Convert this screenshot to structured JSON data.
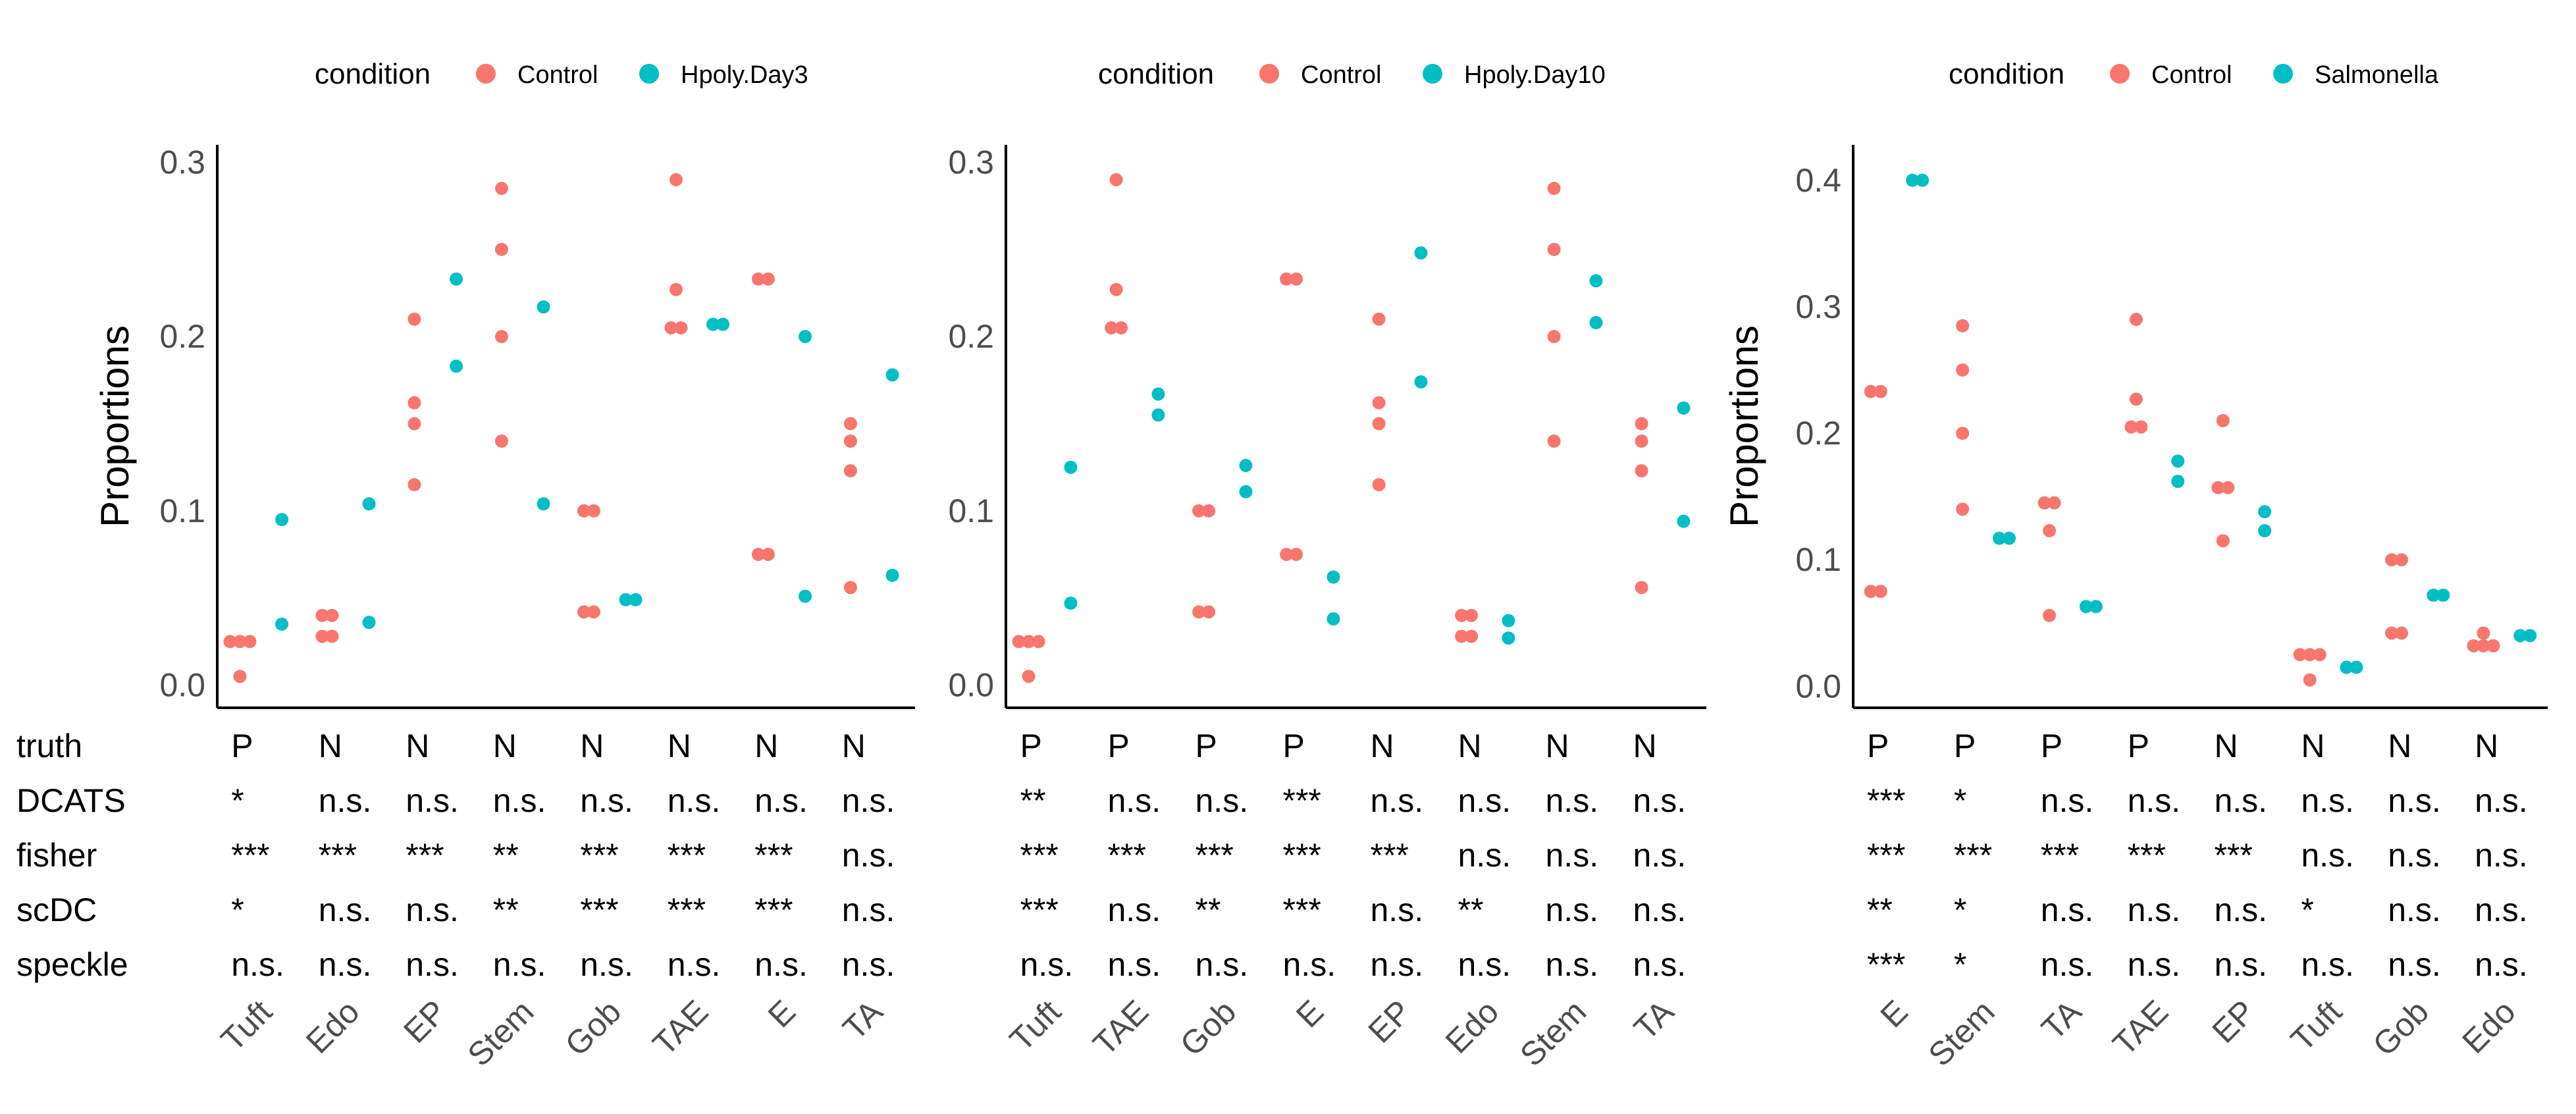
{
  "colors": {
    "control": "#F8766D",
    "treated": "#00BFC4"
  },
  "chart_data": [
    {
      "type": "scatter",
      "legend": {
        "title": "condition",
        "labels": [
          "Control",
          "Hpoly.Day3"
        ],
        "placement": "top"
      },
      "ylabel": "Proportions",
      "xlabel": "",
      "ylim": [
        -0.013,
        0.31
      ],
      "yticks": [
        "0.0",
        "0.1",
        "0.2",
        "0.3"
      ],
      "categories": [
        "Tuft",
        "Edo",
        "EP",
        "Stem",
        "Gob",
        "TAE",
        "E",
        "TA"
      ],
      "row_labels": [
        "truth",
        "DCATS",
        "fisher",
        "scDC",
        "speckle"
      ],
      "rows": [
        [
          "P",
          "N",
          "N",
          "N",
          "N",
          "N",
          "N",
          "N"
        ],
        [
          "*",
          "n.s.",
          "n.s.",
          "n.s.",
          "n.s.",
          "n.s.",
          "n.s.",
          "n.s."
        ],
        [
          "***",
          "***",
          "***",
          "**",
          "***",
          "***",
          "***",
          "n.s."
        ],
        [
          "*",
          "n.s.",
          "n.s.",
          "**",
          "***",
          "***",
          "***",
          "n.s."
        ],
        [
          "n.s.",
          "n.s.",
          "n.s.",
          "n.s.",
          "n.s.",
          "n.s.",
          "n.s.",
          "n.s."
        ]
      ],
      "series": [
        {
          "name": "Control",
          "values": [
            [
              0.025,
              0.025,
              0.025,
              0.005
            ],
            [
              0.04,
              0.04,
              0.028,
              0.028
            ],
            [
              0.21,
              0.162,
              0.15,
              0.115
            ],
            [
              0.285,
              0.25,
              0.2,
              0.14
            ],
            [
              0.1,
              0.1,
              0.042,
              0.042
            ],
            [
              0.29,
              0.227,
              0.205,
              0.205
            ],
            [
              0.233,
              0.233,
              0.075,
              0.075
            ],
            [
              0.15,
              0.14,
              0.123,
              0.056
            ]
          ]
        },
        {
          "name": "Hpoly.Day3",
          "values": [
            [
              0.095,
              0.035
            ],
            [
              0.104,
              0.036
            ],
            [
              0.233,
              0.183
            ],
            [
              0.217,
              0.104
            ],
            [
              0.049,
              0.049
            ],
            [
              0.207,
              0.207
            ],
            [
              0.2,
              0.051
            ],
            [
              0.178,
              0.063
            ]
          ]
        }
      ]
    },
    {
      "type": "scatter",
      "legend": {
        "title": "condition",
        "labels": [
          "Control",
          "Hpoly.Day10"
        ],
        "placement": "top"
      },
      "ylabel": "",
      "xlabel": "",
      "ylim": [
        -0.013,
        0.31
      ],
      "yticks": [
        "0.0",
        "0.1",
        "0.2",
        "0.3"
      ],
      "categories": [
        "Tuft",
        "TAE",
        "Gob",
        "E",
        "EP",
        "Edo",
        "Stem",
        "TA"
      ],
      "row_labels": [
        "",
        "",
        "",
        "",
        ""
      ],
      "rows": [
        [
          "P",
          "P",
          "P",
          "P",
          "N",
          "N",
          "N",
          "N"
        ],
        [
          "**",
          "n.s.",
          "n.s.",
          "***",
          "n.s.",
          "n.s.",
          "n.s.",
          "n.s."
        ],
        [
          "***",
          "***",
          "***",
          "***",
          "***",
          "n.s.",
          "n.s.",
          "n.s."
        ],
        [
          "***",
          "n.s.",
          "**",
          "***",
          "n.s.",
          "**",
          "n.s.",
          "n.s."
        ],
        [
          "n.s.",
          "n.s.",
          "n.s.",
          "n.s.",
          "n.s.",
          "n.s.",
          "n.s.",
          "n.s."
        ]
      ],
      "series": [
        {
          "name": "Control",
          "values": [
            [
              0.025,
              0.025,
              0.025,
              0.005
            ],
            [
              0.29,
              0.227,
              0.205,
              0.205
            ],
            [
              0.1,
              0.1,
              0.042,
              0.042
            ],
            [
              0.233,
              0.233,
              0.075,
              0.075
            ],
            [
              0.21,
              0.162,
              0.15,
              0.115
            ],
            [
              0.04,
              0.04,
              0.028,
              0.028
            ],
            [
              0.285,
              0.25,
              0.2,
              0.14
            ],
            [
              0.15,
              0.14,
              0.123,
              0.056
            ]
          ]
        },
        {
          "name": "Hpoly.Day10",
          "values": [
            [
              0.125,
              0.047
            ],
            [
              0.167,
              0.155
            ],
            [
              0.126,
              0.111
            ],
            [
              0.062,
              0.038
            ],
            [
              0.248,
              0.174
            ],
            [
              0.037,
              0.027
            ],
            [
              0.232,
              0.208
            ],
            [
              0.159,
              0.094
            ]
          ]
        }
      ]
    },
    {
      "type": "scatter",
      "legend": {
        "title": "condition",
        "labels": [
          "Control",
          "Salmonella"
        ],
        "placement": "top"
      },
      "ylabel": "Proportions",
      "xlabel": "",
      "ylim": [
        -0.017,
        0.428
      ],
      "yticks": [
        "0.0",
        "0.1",
        "0.2",
        "0.3",
        "0.4"
      ],
      "categories": [
        "E",
        "Stem",
        "TA",
        "TAE",
        "EP",
        "Tuft",
        "Gob",
        "Edo"
      ],
      "row_labels": [
        "",
        "",
        "",
        "",
        ""
      ],
      "rows": [
        [
          "P",
          "P",
          "P",
          "P",
          "N",
          "N",
          "N",
          "N"
        ],
        [
          "***",
          "*",
          "n.s.",
          "n.s.",
          "n.s.",
          "n.s.",
          "n.s.",
          "n.s."
        ],
        [
          "***",
          "***",
          "***",
          "***",
          "***",
          "n.s.",
          "n.s.",
          "n.s."
        ],
        [
          "**",
          "*",
          "n.s.",
          "n.s.",
          "n.s.",
          "*",
          "n.s.",
          "n.s."
        ],
        [
          "***",
          "*",
          "n.s.",
          "n.s.",
          "n.s.",
          "n.s.",
          "n.s.",
          "n.s."
        ]
      ],
      "series": [
        {
          "name": "Control",
          "values": [
            [
              0.233,
              0.233,
              0.075,
              0.075
            ],
            [
              0.285,
              0.25,
              0.2,
              0.14
            ],
            [
              0.145,
              0.145,
              0.123,
              0.056
            ],
            [
              0.29,
              0.227,
              0.205,
              0.205
            ],
            [
              0.21,
              0.157,
              0.157,
              0.115
            ],
            [
              0.025,
              0.025,
              0.025,
              0.005
            ],
            [
              0.1,
              0.1,
              0.042,
              0.042
            ],
            [
              0.042,
              0.032,
              0.032,
              0.032
            ]
          ]
        },
        {
          "name": "Salmonella",
          "values": [
            [
              0.4,
              0.4
            ],
            [
              0.117,
              0.117
            ],
            [
              0.063,
              0.063
            ],
            [
              0.178,
              0.162
            ],
            [
              0.138,
              0.123
            ],
            [
              0.015,
              0.015
            ],
            [
              0.072,
              0.072
            ],
            [
              0.04,
              0.04
            ]
          ]
        }
      ]
    }
  ]
}
